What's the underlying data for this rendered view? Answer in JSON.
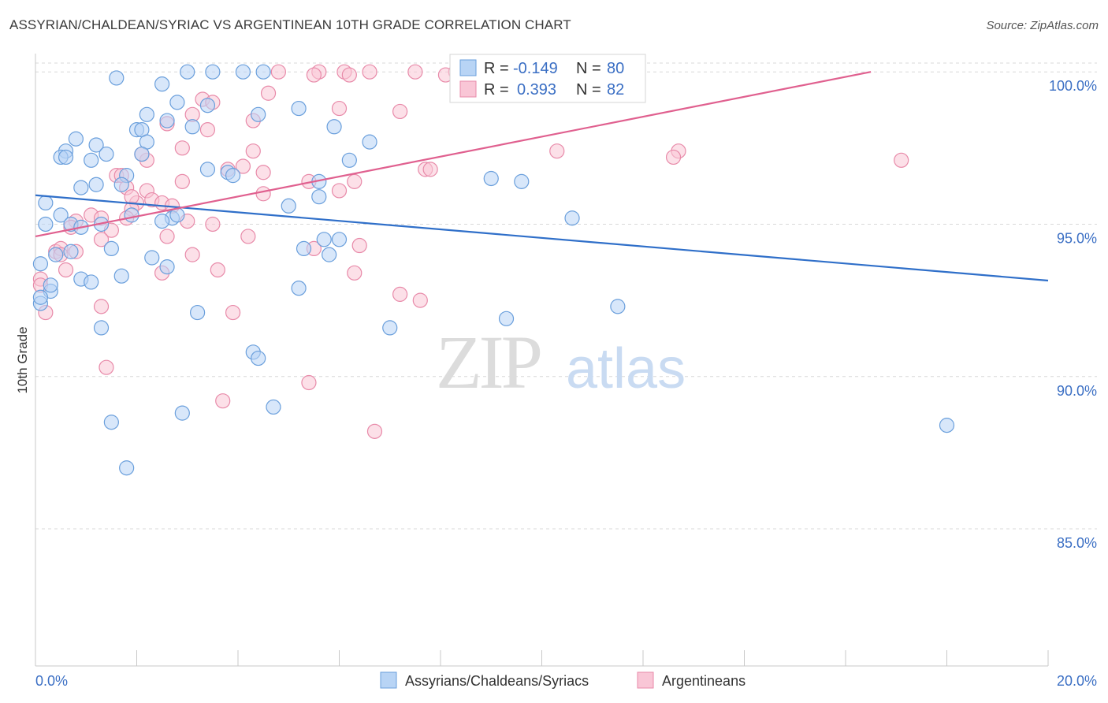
{
  "title": "ASSYRIAN/CHALDEAN/SYRIAC VS ARGENTINEAN 10TH GRADE CORRELATION CHART",
  "source": "Source: ZipAtlas.com",
  "watermark": {
    "zip": "ZIP",
    "atlas": "atlas"
  },
  "colors": {
    "blue_fill": "#b8d4f5",
    "blue_stroke": "#6a9fdc",
    "blue_line": "#2f6fc9",
    "pink_fill": "#f9c6d6",
    "pink_stroke": "#e88aa9",
    "pink_line": "#e0608f",
    "accent_text": "#3b6fc4",
    "grid": "#d8d8d8"
  },
  "stats": [
    {
      "r_label": "R =",
      "r_value": "-0.149",
      "n_label": "N =",
      "n_value": "80"
    },
    {
      "r_label": "R =",
      "r_value": "0.393",
      "n_label": "N =",
      "n_value": "82"
    }
  ],
  "chart_data": {
    "type": "scatter",
    "title": "ASSYRIAN/CHALDEAN/SYRIAC VS ARGENTINEAN 10TH GRADE CORRELATION CHART",
    "xlabel": "",
    "ylabel": "10th Grade",
    "xlim": [
      0,
      20
    ],
    "ylim": [
      80.5,
      100.6
    ],
    "x_tick_labels": [
      "0.0%",
      "20.0%"
    ],
    "y_ticks": [
      85,
      90,
      95,
      100
    ],
    "y_tick_labels": [
      "85.0%",
      "90.0%",
      "95.0%",
      "100.0%"
    ],
    "grid": true,
    "legend_position": "bottom",
    "series": [
      {
        "name": "Assyrians/Chaldeans/Syriacs",
        "color": "#b8d4f5",
        "trend": {
          "x": [
            0,
            20
          ],
          "y": [
            95.95,
            93.15
          ]
        },
        "points": [
          [
            1.6,
            99.8
          ],
          [
            3.0,
            100.0
          ],
          [
            4.1,
            100.0
          ],
          [
            4.5,
            100.0
          ],
          [
            2.5,
            99.6
          ],
          [
            3.5,
            100.0
          ],
          [
            2.8,
            99.0
          ],
          [
            3.4,
            98.9
          ],
          [
            2.2,
            98.6
          ],
          [
            4.4,
            98.6
          ],
          [
            5.2,
            98.8
          ],
          [
            2.6,
            98.4
          ],
          [
            2.0,
            98.1
          ],
          [
            3.1,
            98.2
          ],
          [
            5.9,
            98.2
          ],
          [
            2.1,
            98.1
          ],
          [
            0.8,
            97.8
          ],
          [
            1.2,
            97.6
          ],
          [
            2.2,
            97.7
          ],
          [
            6.6,
            97.7
          ],
          [
            0.6,
            97.4
          ],
          [
            0.5,
            97.2
          ],
          [
            0.6,
            97.2
          ],
          [
            1.1,
            97.1
          ],
          [
            1.4,
            97.3
          ],
          [
            2.1,
            97.3
          ],
          [
            6.2,
            97.1
          ],
          [
            3.4,
            96.8
          ],
          [
            3.8,
            96.7
          ],
          [
            1.8,
            96.6
          ],
          [
            3.9,
            96.6
          ],
          [
            5.6,
            96.4
          ],
          [
            9.0,
            96.5
          ],
          [
            9.6,
            96.4
          ],
          [
            0.9,
            96.2
          ],
          [
            1.2,
            96.3
          ],
          [
            1.7,
            96.3
          ],
          [
            5.6,
            95.9
          ],
          [
            0.2,
            95.7
          ],
          [
            5.0,
            95.6
          ],
          [
            0.5,
            95.3
          ],
          [
            1.9,
            95.3
          ],
          [
            2.7,
            95.2
          ],
          [
            10.6,
            95.2
          ],
          [
            0.2,
            95.0
          ],
          [
            0.7,
            95.0
          ],
          [
            2.5,
            95.1
          ],
          [
            1.3,
            95.0
          ],
          [
            0.9,
            94.9
          ],
          [
            5.7,
            94.5
          ],
          [
            6.0,
            94.5
          ],
          [
            1.5,
            94.2
          ],
          [
            0.7,
            94.1
          ],
          [
            0.4,
            94.0
          ],
          [
            5.3,
            94.2
          ],
          [
            5.8,
            94.0
          ],
          [
            2.3,
            93.9
          ],
          [
            0.1,
            93.7
          ],
          [
            2.6,
            93.6
          ],
          [
            1.7,
            93.3
          ],
          [
            0.9,
            93.2
          ],
          [
            1.1,
            93.1
          ],
          [
            0.3,
            92.8
          ],
          [
            5.2,
            92.9
          ],
          [
            0.1,
            92.4
          ],
          [
            11.5,
            92.3
          ],
          [
            3.2,
            92.1
          ],
          [
            9.3,
            91.9
          ],
          [
            1.3,
            91.6
          ],
          [
            7.0,
            91.6
          ],
          [
            4.3,
            90.8
          ],
          [
            4.4,
            90.6
          ],
          [
            4.7,
            89.0
          ],
          [
            2.9,
            88.8
          ],
          [
            1.5,
            88.5
          ],
          [
            18.0,
            88.4
          ],
          [
            1.8,
            87.0
          ],
          [
            0.1,
            92.6
          ],
          [
            0.3,
            93.0
          ],
          [
            2.8,
            95.3
          ]
        ]
      },
      {
        "name": "Argentineans",
        "color": "#f9c6d6",
        "trend": {
          "x": [
            0,
            16.5
          ],
          "y": [
            94.6,
            100.0
          ]
        },
        "points": [
          [
            4.8,
            100.0
          ],
          [
            5.6,
            100.0
          ],
          [
            6.1,
            100.0
          ],
          [
            6.6,
            100.0
          ],
          [
            7.5,
            100.0
          ],
          [
            8.3,
            100.0
          ],
          [
            8.8,
            100.0
          ],
          [
            9.5,
            100.0
          ],
          [
            5.5,
            99.9
          ],
          [
            6.2,
            99.9
          ],
          [
            9.2,
            99.8
          ],
          [
            8.1,
            99.9
          ],
          [
            4.6,
            99.3
          ],
          [
            3.3,
            99.1
          ],
          [
            3.5,
            99.0
          ],
          [
            6.0,
            98.8
          ],
          [
            7.2,
            98.7
          ],
          [
            3.1,
            98.6
          ],
          [
            4.3,
            98.4
          ],
          [
            2.6,
            98.3
          ],
          [
            3.4,
            98.1
          ],
          [
            2.9,
            97.5
          ],
          [
            4.3,
            97.4
          ],
          [
            10.3,
            97.4
          ],
          [
            12.7,
            97.4
          ],
          [
            12.6,
            97.2
          ],
          [
            17.1,
            97.1
          ],
          [
            2.2,
            97.1
          ],
          [
            3.8,
            96.8
          ],
          [
            4.5,
            96.7
          ],
          [
            7.7,
            96.8
          ],
          [
            7.8,
            96.8
          ],
          [
            1.6,
            96.6
          ],
          [
            1.7,
            96.6
          ],
          [
            2.9,
            96.4
          ],
          [
            5.4,
            96.4
          ],
          [
            6.3,
            96.4
          ],
          [
            1.8,
            96.2
          ],
          [
            2.2,
            96.1
          ],
          [
            6.0,
            96.1
          ],
          [
            4.5,
            96.0
          ],
          [
            2.3,
            95.8
          ],
          [
            2.0,
            95.7
          ],
          [
            2.5,
            95.7
          ],
          [
            2.7,
            95.6
          ],
          [
            1.9,
            95.5
          ],
          [
            1.8,
            95.2
          ],
          [
            1.1,
            95.3
          ],
          [
            1.3,
            95.2
          ],
          [
            0.8,
            95.1
          ],
          [
            3.5,
            95.0
          ],
          [
            0.7,
            94.9
          ],
          [
            1.5,
            94.8
          ],
          [
            4.2,
            94.6
          ],
          [
            1.3,
            94.5
          ],
          [
            2.6,
            94.6
          ],
          [
            0.4,
            94.1
          ],
          [
            0.5,
            94.2
          ],
          [
            0.8,
            94.1
          ],
          [
            5.5,
            94.2
          ],
          [
            6.4,
            94.3
          ],
          [
            3.1,
            94.0
          ],
          [
            0.5,
            94.0
          ],
          [
            0.6,
            93.5
          ],
          [
            3.6,
            93.5
          ],
          [
            2.5,
            93.4
          ],
          [
            6.3,
            93.4
          ],
          [
            0.1,
            93.2
          ],
          [
            0.1,
            93.0
          ],
          [
            7.2,
            92.7
          ],
          [
            7.6,
            92.5
          ],
          [
            1.3,
            92.3
          ],
          [
            0.2,
            92.1
          ],
          [
            3.9,
            92.1
          ],
          [
            1.4,
            90.3
          ],
          [
            5.4,
            89.8
          ],
          [
            3.7,
            89.2
          ],
          [
            6.7,
            88.2
          ],
          [
            2.1,
            97.3
          ],
          [
            4.1,
            96.9
          ],
          [
            1.9,
            95.9
          ],
          [
            3.0,
            95.1
          ]
        ]
      }
    ]
  },
  "legend": [
    "Assyrians/Chaldeans/Syriacs",
    "Argentineans"
  ]
}
